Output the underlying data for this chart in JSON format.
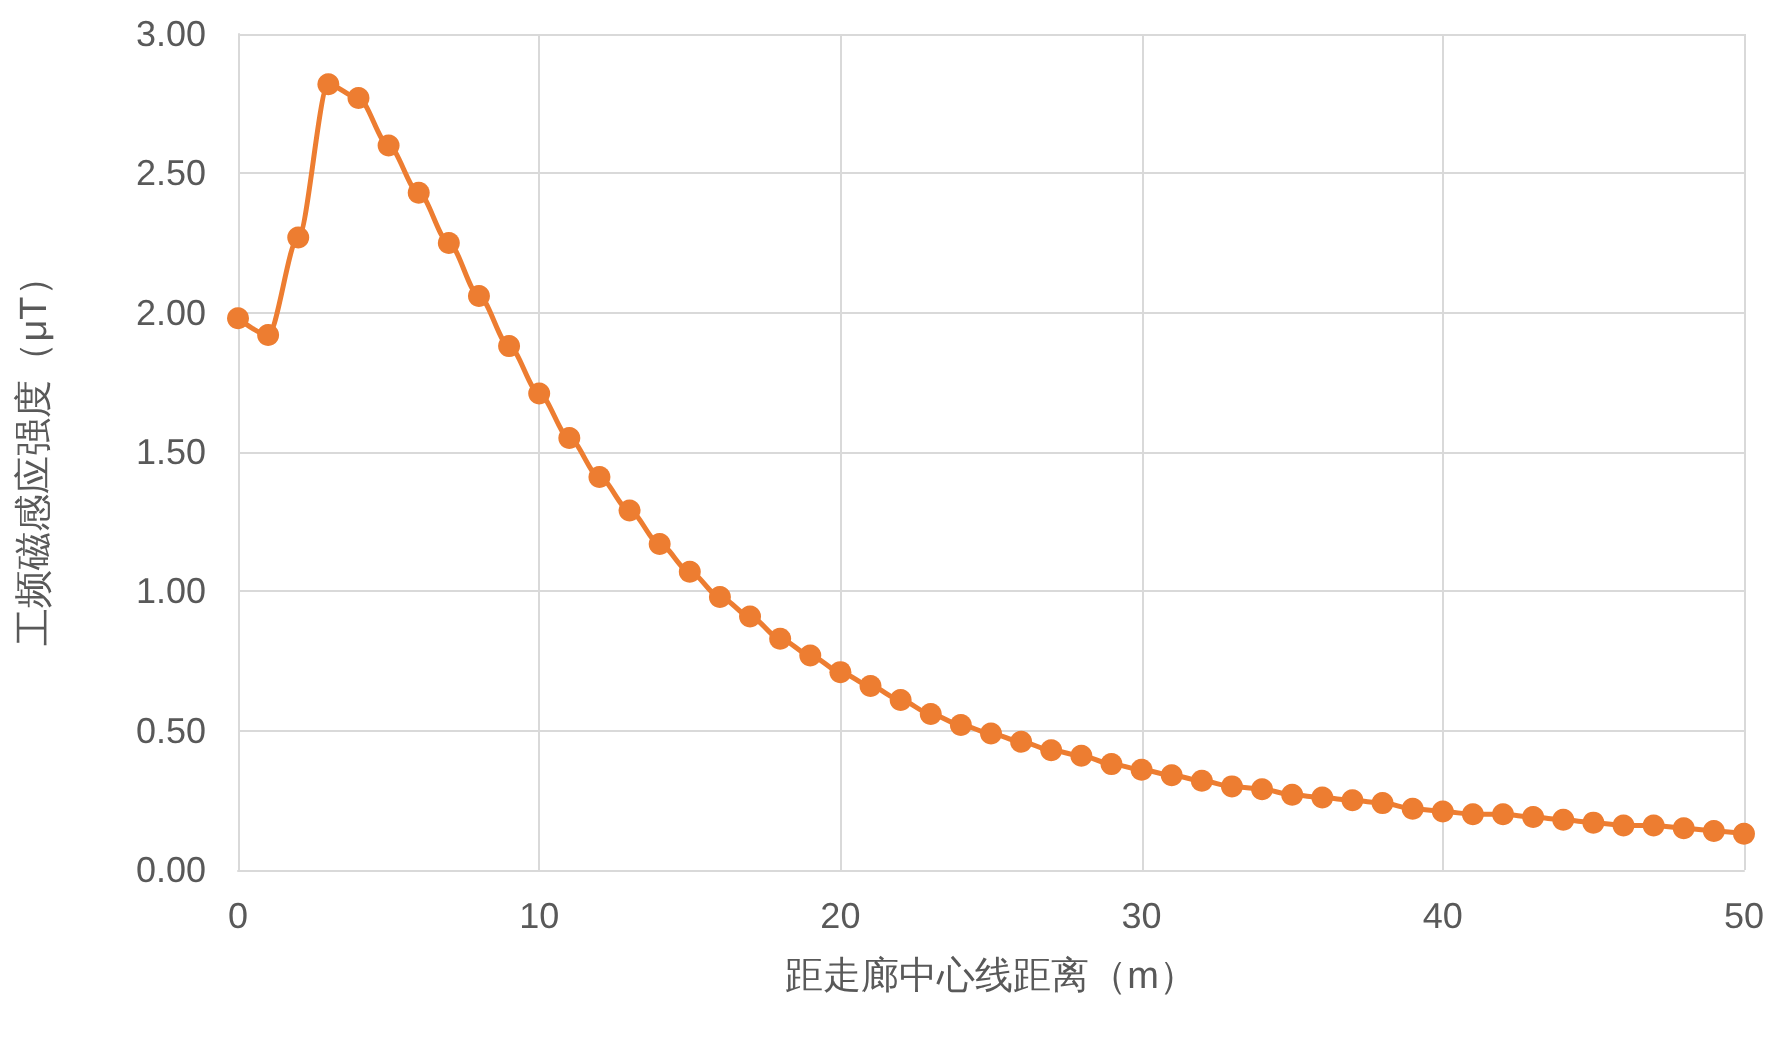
{
  "chart_data": {
    "type": "line",
    "xlabel": "距走廊中心线距离（m）",
    "ylabel": "工频磁感应强度（μT）",
    "x": [
      0,
      1,
      2,
      3,
      4,
      5,
      6,
      7,
      8,
      9,
      10,
      11,
      12,
      13,
      14,
      15,
      16,
      17,
      18,
      19,
      20,
      21,
      22,
      23,
      24,
      25,
      26,
      27,
      28,
      29,
      30,
      31,
      32,
      33,
      34,
      35,
      36,
      37,
      38,
      39,
      40,
      41,
      42,
      43,
      44,
      45,
      46,
      47,
      48,
      49,
      50
    ],
    "series": [
      {
        "color": "#ed7d31",
        "values": [
          1.98,
          1.92,
          2.27,
          2.82,
          2.77,
          2.6,
          2.43,
          2.25,
          2.06,
          1.88,
          1.71,
          1.55,
          1.41,
          1.29,
          1.17,
          1.07,
          0.98,
          0.91,
          0.83,
          0.77,
          0.71,
          0.66,
          0.61,
          0.56,
          0.52,
          0.49,
          0.46,
          0.43,
          0.41,
          0.38,
          0.36,
          0.34,
          0.32,
          0.3,
          0.29,
          0.27,
          0.26,
          0.25,
          0.24,
          0.22,
          0.21,
          0.2,
          0.2,
          0.19,
          0.18,
          0.17,
          0.16,
          0.16,
          0.15,
          0.14,
          0.13
        ]
      }
    ],
    "xlim": [
      0,
      50
    ],
    "xticks": [
      0,
      10,
      20,
      30,
      40,
      50
    ],
    "ylim": [
      0,
      3
    ],
    "yticks": [
      {
        "value": 0,
        "label": "0.00"
      },
      {
        "value": 0.5,
        "label": "0.50"
      },
      {
        "value": 1,
        "label": "1.00"
      },
      {
        "value": 1.5,
        "label": "1.50"
      },
      {
        "value": 2,
        "label": "2.00"
      },
      {
        "value": 2.5,
        "label": "2.50"
      },
      {
        "value": 3,
        "label": "3.00"
      }
    ],
    "grid": true,
    "marker": "circle",
    "line_style": "solid"
  }
}
